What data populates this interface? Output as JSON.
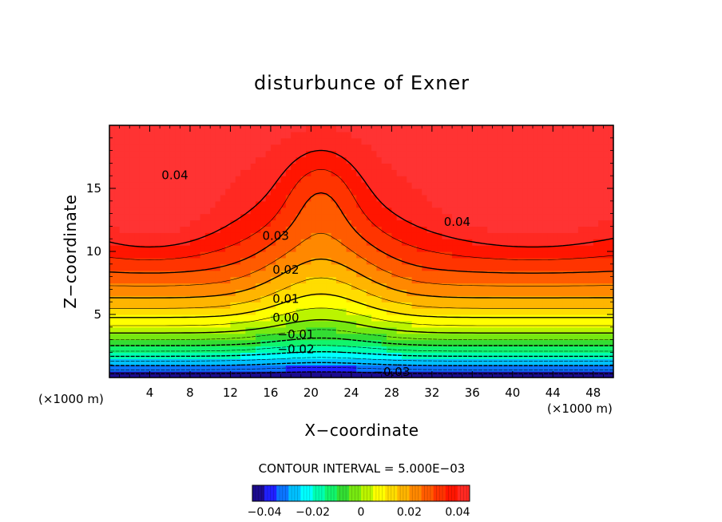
{
  "chart_data": {
    "type": "heatmap",
    "subtype": "filled-contour",
    "title": "disturbunce of Exner",
    "xlabel": "X−coordinate",
    "ylabel": "Z−coordinate",
    "x_unit_label": "(×1000 m)",
    "x_range": [
      0,
      50
    ],
    "z_range": [
      0,
      20
    ],
    "x_ticks": [
      4,
      8,
      12,
      16,
      20,
      24,
      28,
      32,
      36,
      40,
      44,
      48
    ],
    "x_tick_labels": [
      "4",
      "8",
      "12",
      "16",
      "20",
      "24",
      "28",
      "32",
      "36",
      "40",
      "44",
      "48"
    ],
    "z_ticks": [
      5,
      10,
      15
    ],
    "z_tick_labels": [
      "5",
      "10",
      "15"
    ],
    "contour_interval_text": "CONTOUR INTERVAL = 5.000E−03",
    "contour_interval": 0.005,
    "value_range": [
      -0.045,
      0.045
    ],
    "labeled_contours": [
      {
        "text": "0.04",
        "x": 6.5,
        "z": 16.0
      },
      {
        "text": "0.04",
        "x": 34.5,
        "z": 12.3
      },
      {
        "text": "0.03",
        "x": 16.5,
        "z": 11.2
      },
      {
        "text": "0.02",
        "x": 17.5,
        "z": 8.5
      },
      {
        "text": "0.01",
        "x": 17.5,
        "z": 6.2
      },
      {
        "text": "0.00",
        "x": 17.5,
        "z": 4.7
      },
      {
        "text": "−0.01",
        "x": 18.5,
        "z": 3.4
      },
      {
        "text": "−0.02",
        "x": 18.5,
        "z": 2.2
      },
      {
        "text": "−0.03",
        "x": 28.0,
        "z": 0.4
      }
    ],
    "colorbar": {
      "ticks": [
        -0.04,
        -0.02,
        0,
        0.02,
        0.04
      ],
      "tick_labels": [
        "−0.04",
        "−0.02",
        "0",
        "0.02",
        "0.04"
      ]
    },
    "grid": false,
    "legend": "colorbar-bottom"
  },
  "colors": {
    "colormap": [
      "#1a0055",
      "#2020ff",
      "#00a0ff",
      "#00ffff",
      "#00ff88",
      "#33dd33",
      "#99ee00",
      "#ffff00",
      "#ffcc00",
      "#ff8800",
      "#ff4400",
      "#ff1500",
      "#ff3333"
    ]
  }
}
